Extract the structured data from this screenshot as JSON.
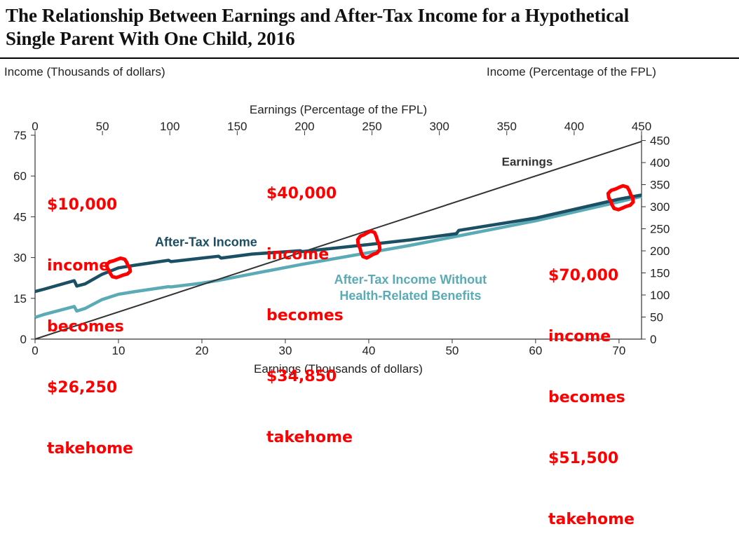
{
  "header": {
    "title_line1": "The Relationship Between Earnings and After-Tax Income for a Hypothetical",
    "title_line2": "Single Parent With One Child, 2016"
  },
  "axis_labels": {
    "left_y": "Income (Thousands of dollars)",
    "right_y": "Income (Percentage of the FPL)",
    "top_x": "Earnings (Percentage of the FPL)",
    "bottom_x": "Earnings (Thousands of dollars)"
  },
  "annotations": [
    {
      "lines": [
        "$10,000",
        "income",
        "becomes",
        "$26,250",
        "takehome"
      ]
    },
    {
      "lines": [
        "$40,000",
        "income",
        "becomes",
        "$34,850",
        "takehome"
      ]
    },
    {
      "lines": [
        "$70,000",
        "income",
        "becomes",
        "$51,500",
        "takehome"
      ]
    }
  ],
  "colors": {
    "after_tax": "#1b4f63",
    "without_health": "#5aabb6",
    "earnings": "#333333",
    "annotation": "#ff0000"
  },
  "chart_data": {
    "type": "line",
    "xlabel": "Earnings (Thousands of dollars)",
    "ylabel": "Income (Thousands of dollars)",
    "xlim": [
      0,
      72.7
    ],
    "ylim": [
      0,
      75
    ],
    "x_ticks": [
      0,
      10,
      20,
      30,
      40,
      50,
      60,
      70
    ],
    "y_ticks": [
      0,
      15,
      30,
      45,
      60,
      75
    ],
    "secondary_x": {
      "label": "Earnings (Percentage of the FPL)",
      "ticks": [
        0,
        50,
        100,
        150,
        200,
        250,
        300,
        350,
        400,
        450
      ],
      "lim": [
        0,
        450
      ]
    },
    "secondary_y": {
      "label": "Income (Percentage of the FPL)",
      "ticks": [
        0,
        50,
        100,
        150,
        200,
        250,
        300,
        350,
        400,
        450
      ],
      "lim": [
        0,
        462
      ]
    },
    "grid": false,
    "series": [
      {
        "name": "Earnings",
        "points": [
          [
            0,
            0
          ],
          [
            72.7,
            72.7
          ]
        ]
      },
      {
        "name": "After-Tax Income",
        "points": [
          [
            0,
            17.5
          ],
          [
            1,
            18.3
          ],
          [
            4.7,
            21.5
          ],
          [
            5,
            19.5
          ],
          [
            6,
            20.3
          ],
          [
            8,
            23.8
          ],
          [
            10,
            26.2
          ],
          [
            12,
            27.2
          ],
          [
            16,
            29
          ],
          [
            16.3,
            28.5
          ],
          [
            20,
            29.8
          ],
          [
            22,
            30.5
          ],
          [
            22.3,
            29.8
          ],
          [
            26,
            31.3
          ],
          [
            31.8,
            32.5
          ],
          [
            32,
            32.2
          ],
          [
            40,
            34.8
          ],
          [
            45,
            36.5
          ],
          [
            50.5,
            38.8
          ],
          [
            50.8,
            40
          ],
          [
            60,
            44.5
          ],
          [
            70,
            51.5
          ],
          [
            72.7,
            53
          ]
        ]
      },
      {
        "name": "After-Tax Income Without Health-Related Benefits",
        "points": [
          [
            0,
            8
          ],
          [
            1,
            9
          ],
          [
            4.7,
            12
          ],
          [
            5,
            10.3
          ],
          [
            6,
            11.3
          ],
          [
            8,
            14.5
          ],
          [
            10,
            16.5
          ],
          [
            12,
            17.5
          ],
          [
            16,
            19.3
          ],
          [
            16.3,
            19.2
          ],
          [
            20,
            20.6
          ],
          [
            22,
            21.6
          ],
          [
            26,
            24
          ],
          [
            32,
            27.5
          ],
          [
            40,
            31.8
          ],
          [
            45,
            34.5
          ],
          [
            50,
            37.5
          ],
          [
            60,
            43.5
          ],
          [
            70,
            50.5
          ],
          [
            72.7,
            52.5
          ]
        ]
      }
    ],
    "series_labels": [
      "Earnings",
      "After-Tax Income",
      "After-Tax Income Without",
      "Health-Related Benefits"
    ]
  }
}
